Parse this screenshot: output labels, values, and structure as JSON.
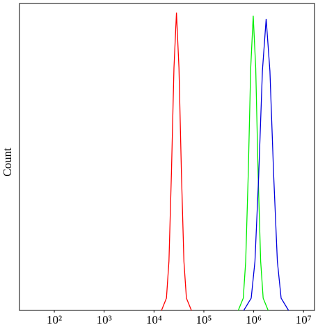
{
  "chart_data": {
    "type": "line",
    "y_label": "Count",
    "xscale": "log",
    "xlim": [
      20,
      16600000
    ],
    "ylim": [
      0,
      100
    ],
    "xticks": [
      {
        "value": 100,
        "label": "10²"
      },
      {
        "value": 1000,
        "label": "10³"
      },
      {
        "value": 10000,
        "label": "10⁴"
      },
      {
        "value": 100000,
        "label": "10⁵"
      },
      {
        "value": 1000000,
        "label": "10⁶"
      },
      {
        "value": 10000000,
        "label": "10⁷"
      }
    ],
    "series": [
      {
        "color": "#ff0000",
        "x": [
          14125,
          17783,
          19953,
          22387,
          25119,
          28184,
          31623,
          35481,
          39811,
          44668,
          56234
        ],
        "values": [
          0,
          4,
          16,
          45,
          79,
          97,
          79,
          45,
          16,
          4,
          0
        ]
      },
      {
        "color": "#00ee00",
        "x": [
          490000,
          617000,
          692000,
          776000,
          871000,
          977000,
          1096000,
          1230000,
          1380000,
          1549000,
          1950000
        ],
        "values": [
          0,
          4,
          16,
          44,
          79,
          96,
          79,
          44,
          16,
          4,
          0
        ]
      },
      {
        "color": "#0000dd",
        "x": [
          631000,
          891000,
          1059000,
          1259000,
          1496000,
          1778000,
          2113000,
          2512000,
          2985000,
          3548000,
          5012000
        ],
        "values": [
          0,
          4,
          16,
          44,
          78,
          95,
          78,
          44,
          16,
          4,
          0
        ]
      }
    ]
  }
}
